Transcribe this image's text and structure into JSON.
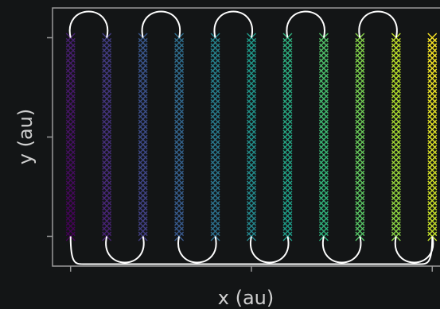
{
  "chart_data": {
    "type": "scatter",
    "title": "",
    "xlabel": "x (au)",
    "ylabel": "y (au)",
    "xlim": [
      -0.5,
      10.5
    ],
    "ylim": [
      -0.15,
      1.15
    ],
    "grid": false,
    "marker": "x",
    "colormap": "viridis",
    "x_ticks": [
      0,
      5,
      10
    ],
    "y_ticks": [
      0,
      0.5,
      1
    ],
    "columns_x": [
      0,
      1,
      2,
      3,
      4,
      5,
      6,
      7,
      8,
      9,
      10
    ],
    "y_range": [
      0,
      1
    ],
    "points_per_column": 40,
    "path_shape": "serpentine"
  },
  "colors": {
    "background": "#131516",
    "axes": "#9a9a9a",
    "path": "#ffffff",
    "label": "#cfcfcf"
  }
}
